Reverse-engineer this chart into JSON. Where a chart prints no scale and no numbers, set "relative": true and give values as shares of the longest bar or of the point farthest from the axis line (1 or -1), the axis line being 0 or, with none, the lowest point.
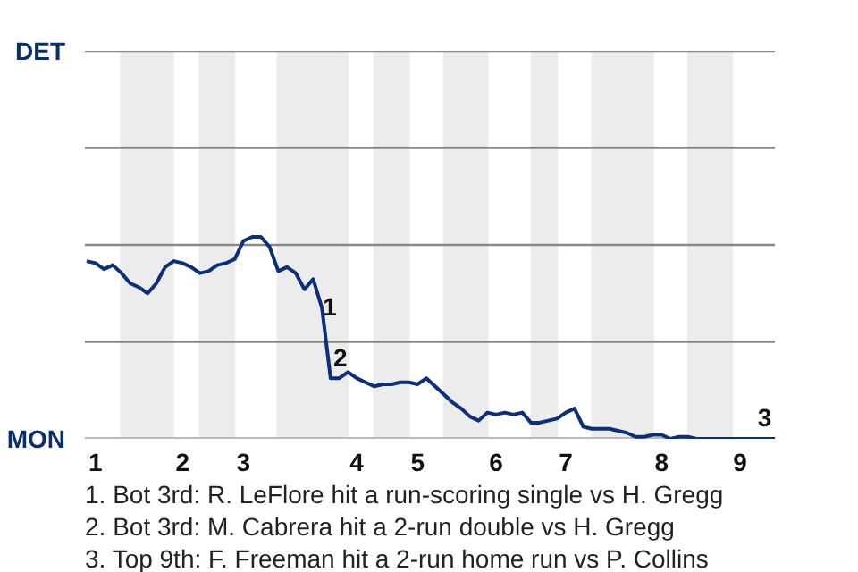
{
  "chart_data": {
    "type": "line",
    "relative": true,
    "categories": [
      null,
      "1",
      null,
      null,
      null,
      null,
      null,
      null,
      null,
      null,
      null,
      "2",
      null,
      null,
      null,
      null,
      null,
      null,
      "3",
      null,
      null,
      null,
      null,
      null,
      null,
      null,
      null,
      null,
      null,
      null,
      null,
      "4",
      null,
      null,
      null,
      null,
      null,
      null,
      "5",
      null,
      null,
      null,
      null,
      null,
      null,
      null,
      null,
      "6",
      null,
      null,
      null,
      null,
      null,
      null,
      null,
      "7",
      null,
      null,
      null,
      null,
      null,
      null,
      null,
      null,
      null,
      null,
      "8",
      null,
      null,
      null,
      null,
      null,
      null,
      null,
      null,
      "9",
      null,
      null,
      null,
      null
    ],
    "series": [
      {
        "color": "#0b2f7a",
        "values": [
          0.88,
          0.87,
          0.84,
          0.86,
          0.82,
          0.77,
          0.75,
          0.72,
          0.77,
          0.85,
          0.88,
          0.87,
          0.85,
          0.82,
          0.83,
          0.86,
          0.87,
          0.89,
          0.98,
          1,
          1,
          0.95,
          0.83,
          0.85,
          0.82,
          0.74,
          0.79,
          0.65,
          0.3,
          0.3,
          0.33,
          0.3,
          0.28,
          0.26,
          0.27,
          0.27,
          0.28,
          0.28,
          0.27,
          0.3,
          0.26,
          0.22,
          0.18,
          0.15,
          0.11,
          0.09,
          0.13,
          0.12,
          0.13,
          0.12,
          0.13,
          0.08,
          0.08,
          0.09,
          0.1,
          0.13,
          0.15,
          0.06,
          0.05,
          0.05,
          0.05,
          0.04,
          0.03,
          0.01,
          0.01,
          0.02,
          0.02,
          0,
          0.01,
          0.01,
          0,
          0,
          0,
          0,
          0,
          0,
          0,
          0,
          0,
          0
        ]
      }
    ],
    "line_style": "solid",
    "ref_lines": [
      {
        "axis": "y",
        "value": 0.48,
        "color": "#888888"
      },
      {
        "axis": "y",
        "value": 0.96,
        "color": "#888888"
      },
      {
        "axis": "y",
        "value": 1.44,
        "color": "#888888"
      },
      {
        "axis": "y",
        "value": 1.92,
        "color": "#888888"
      }
    ],
    "annotations": [
      "DET",
      "MON",
      "1",
      "2",
      "3",
      "1. Bot 3rd: R. LeFlore hit a run-scoring single vs H. Gregg",
      "2. Bot 3rd: M. Cabrera hit a 2-run double vs H. Gregg",
      "3. Top 9th: F. Freeman hit a 2-run home run vs P. Collins"
    ]
  }
}
